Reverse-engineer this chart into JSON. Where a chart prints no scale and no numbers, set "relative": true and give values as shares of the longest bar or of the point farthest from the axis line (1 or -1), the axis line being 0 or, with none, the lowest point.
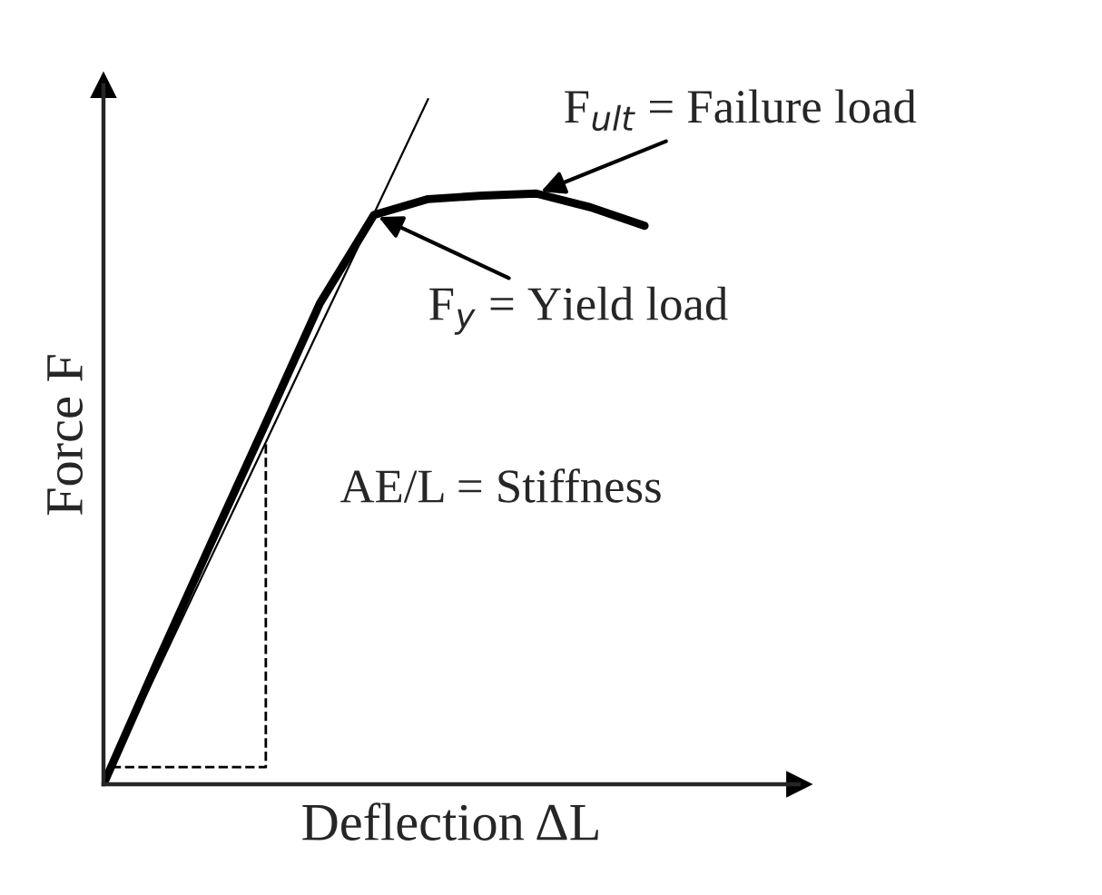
{
  "chart_data": {
    "type": "line",
    "relative": true,
    "xlabel": "Deflection ΔL",
    "ylabel": "Force F",
    "categories": [
      null,
      null,
      null,
      null,
      null,
      null,
      null,
      null,
      null,
      null,
      null
    ],
    "series": [
      {
        "color": "#000000",
        "values": [
          0,
          0.179,
          0.354,
          0.527,
          0.702,
          0.831,
          0.854,
          0.859,
          0.862,
          0.842,
          0.815
        ]
      },
      {
        "color": "#000000",
        "values": [
          0,
          0.166,
          0.333,
          0.499,
          0.667,
          0.833,
          1,
          null,
          null,
          null,
          null
        ]
      }
    ],
    "annotations": [
      "F$_{ult}$ = Failure load",
      "F$_{y}$ = Yield load",
      "AE/L = Stiffness"
    ],
    "marker": "none",
    "line_style": "solid"
  }
}
